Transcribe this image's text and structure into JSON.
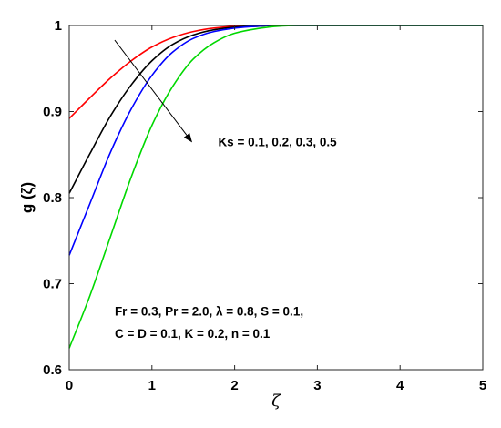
{
  "chart_data": {
    "type": "line",
    "xlabel": "ζ",
    "ylabel": "g (ζ)",
    "xlim": [
      0,
      5
    ],
    "ylim": [
      0.6,
      1.0
    ],
    "x_ticks": [
      0,
      1,
      2,
      3,
      4,
      5
    ],
    "x_tick_labels": [
      "0",
      "1",
      "2",
      "3",
      "4",
      "5"
    ],
    "y_ticks": [
      0.6,
      0.7,
      0.8,
      0.9,
      1.0
    ],
    "y_tick_labels": [
      "0.6",
      "0.7",
      "0.8",
      "0.9",
      "1"
    ],
    "grid": false,
    "series": [
      {
        "color": "#ff0000",
        "x": [
          0,
          0.25,
          0.5,
          0.75,
          1.0,
          1.25,
          1.5,
          1.75,
          2.0,
          2.25,
          2.5,
          2.75,
          3.0,
          5.0
        ],
        "y": [
          0.892,
          0.916,
          0.939,
          0.959,
          0.975,
          0.986,
          0.993,
          0.997,
          0.999,
          1.0,
          1.0,
          1.0,
          1.0,
          1.0
        ]
      },
      {
        "color": "#000000",
        "x": [
          0,
          0.25,
          0.5,
          0.75,
          1.0,
          1.25,
          1.5,
          1.75,
          2.0,
          2.25,
          2.5,
          2.75,
          3.0,
          5.0
        ],
        "y": [
          0.805,
          0.851,
          0.895,
          0.931,
          0.959,
          0.978,
          0.989,
          0.995,
          0.998,
          0.999,
          1.0,
          1.0,
          1.0,
          1.0
        ]
      },
      {
        "color": "#0000ff",
        "x": [
          0,
          0.25,
          0.5,
          0.75,
          1.0,
          1.25,
          1.5,
          1.75,
          2.0,
          2.25,
          2.5,
          2.75,
          3.0,
          5.0
        ],
        "y": [
          0.733,
          0.793,
          0.853,
          0.903,
          0.942,
          0.969,
          0.985,
          0.993,
          0.997,
          0.999,
          1.0,
          1.0,
          1.0,
          1.0
        ]
      },
      {
        "color": "#00d800",
        "x": [
          0,
          0.25,
          0.5,
          0.75,
          1.0,
          1.25,
          1.5,
          1.75,
          2.0,
          2.25,
          2.5,
          2.75,
          3.0,
          5.0
        ],
        "y": [
          0.625,
          0.686,
          0.755,
          0.824,
          0.884,
          0.929,
          0.961,
          0.98,
          0.991,
          0.996,
          0.999,
          1.0,
          1.0,
          1.0
        ]
      }
    ],
    "annotations": [
      {
        "text": "Ks = 0.1, 0.2, 0.3, 0.5",
        "x": 1.8,
        "y": 0.86
      },
      {
        "text": "Fr = 0.3, Pr = 2.0, λ = 0.8, S = 0.1,",
        "x": 0.55,
        "y": 0.663
      },
      {
        "text": "C = D = 0.1, K = 0.2, n = 0.1",
        "x": 0.55,
        "y": 0.637
      }
    ],
    "arrow": {
      "from": [
        0.55,
        0.983
      ],
      "to": [
        1.48,
        0.865
      ]
    }
  }
}
